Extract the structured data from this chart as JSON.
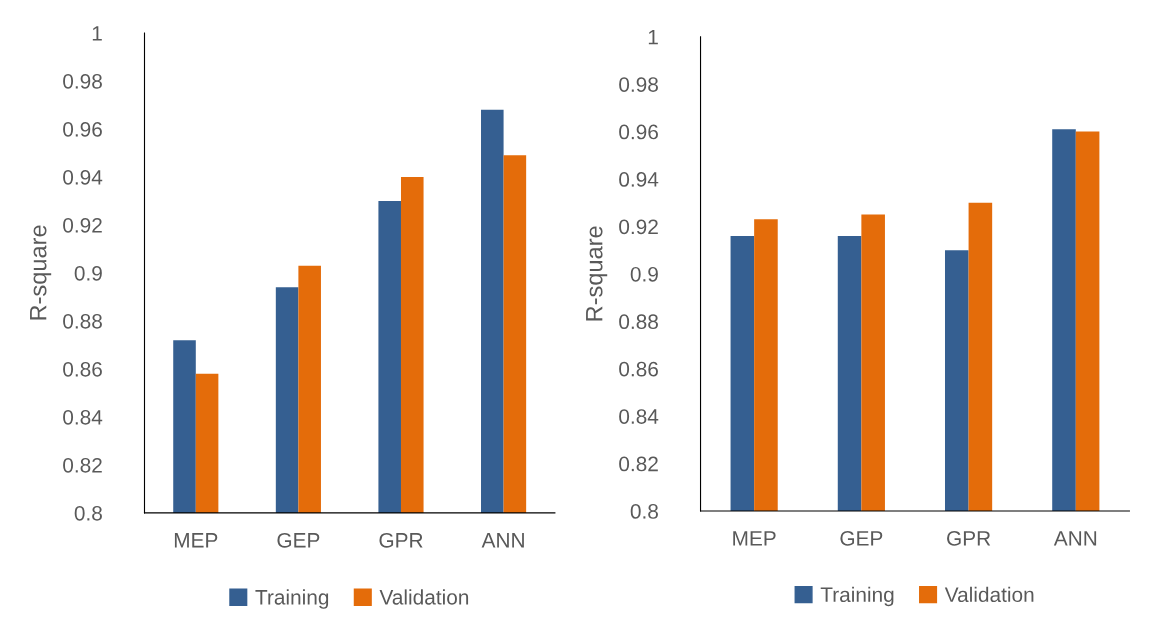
{
  "chart_data": [
    {
      "type": "bar",
      "ylabel": "R-square",
      "categories": [
        "MEP",
        "GEP",
        "GPR",
        "ANN"
      ],
      "series": [
        {
          "name": "Training",
          "color": "#355f91",
          "values": [
            0.872,
            0.894,
            0.93,
            0.968
          ]
        },
        {
          "name": "Validation",
          "color": "#e46c0a",
          "values": [
            0.858,
            0.903,
            0.94,
            0.949
          ]
        }
      ],
      "ylim": [
        0.8,
        1
      ],
      "yticks": [
        0.8,
        0.82,
        0.84,
        0.86,
        0.88,
        0.9,
        0.92,
        0.94,
        0.96,
        0.98,
        1
      ],
      "grid": false,
      "legend": "bottom"
    },
    {
      "type": "bar",
      "ylabel": "R-square",
      "categories": [
        "MEP",
        "GEP",
        "GPR",
        "ANN"
      ],
      "series": [
        {
          "name": "Training",
          "color": "#355f91",
          "values": [
            0.916,
            0.916,
            0.91,
            0.961
          ]
        },
        {
          "name": "Validation",
          "color": "#e46c0a",
          "values": [
            0.923,
            0.925,
            0.93,
            0.96
          ]
        }
      ],
      "ylim": [
        0.8,
        1
      ],
      "yticks": [
        0.8,
        0.82,
        0.84,
        0.86,
        0.88,
        0.9,
        0.92,
        0.94,
        0.96,
        0.98,
        1
      ],
      "grid": false,
      "legend": "bottom"
    }
  ]
}
